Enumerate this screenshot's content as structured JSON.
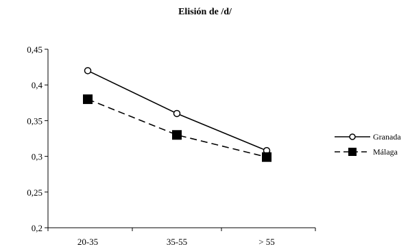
{
  "chart_data": {
    "type": "line",
    "title": "Elisión de /d/",
    "xlabel": "",
    "ylabel": "",
    "categories": [
      "20-35",
      "35-55",
      "> 55"
    ],
    "ylim": [
      0.2,
      0.45
    ],
    "yticks": [
      "0,45",
      "0,4",
      "0,35",
      "0,3",
      "0,25",
      "0,2"
    ],
    "ytick_values": [
      0.45,
      0.4,
      0.35,
      0.3,
      0.25,
      0.2
    ],
    "grid": false,
    "legend_position": "right",
    "series": [
      {
        "name": "Granada",
        "values": [
          0.42,
          0.36,
          0.308
        ],
        "marker": "open-circle",
        "line": "solid",
        "color": "#000000"
      },
      {
        "name": "Málaga",
        "values": [
          0.38,
          0.33,
          0.299
        ],
        "marker": "filled-square",
        "line": "dashed",
        "color": "#000000"
      }
    ]
  }
}
